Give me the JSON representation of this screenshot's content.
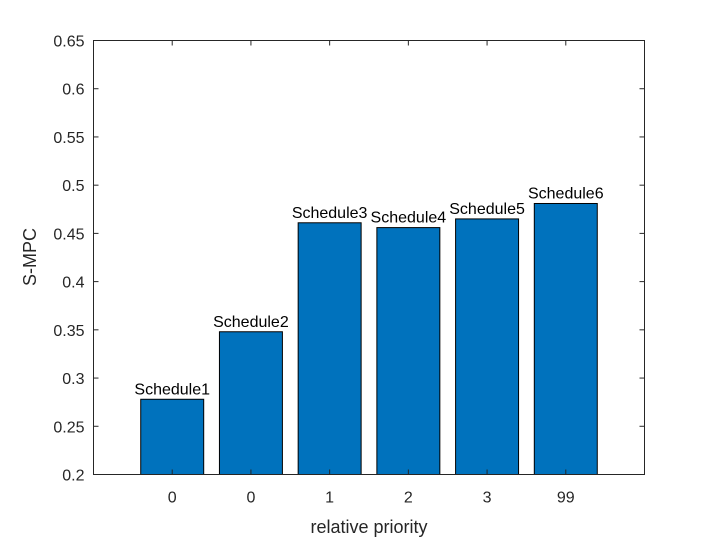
{
  "chart_data": {
    "type": "bar",
    "categories": [
      "0",
      "0",
      "1",
      "2",
      "3",
      "99"
    ],
    "values": [
      0.278,
      0.348,
      0.461,
      0.456,
      0.465,
      0.481
    ],
    "bar_labels": [
      "Schedule1",
      "Schedule2",
      "Schedule3",
      "Schedule4",
      "Schedule5",
      "Schedule6"
    ],
    "xlabel": "relative priority",
    "ylabel": "S-MPC",
    "ylim": [
      0.2,
      0.65
    ],
    "yticks": [
      0.2,
      0.25,
      0.3,
      0.35,
      0.4,
      0.45,
      0.5,
      0.55,
      0.6,
      0.65
    ],
    "ytick_labels": [
      "0.2",
      "0.25",
      "0.3",
      "0.35",
      "0.4",
      "0.45",
      "0.5",
      "0.55",
      "0.6",
      "0.65"
    ],
    "grid": false,
    "bar_color": "#0072BD",
    "bar_edge_color": "#000000"
  }
}
